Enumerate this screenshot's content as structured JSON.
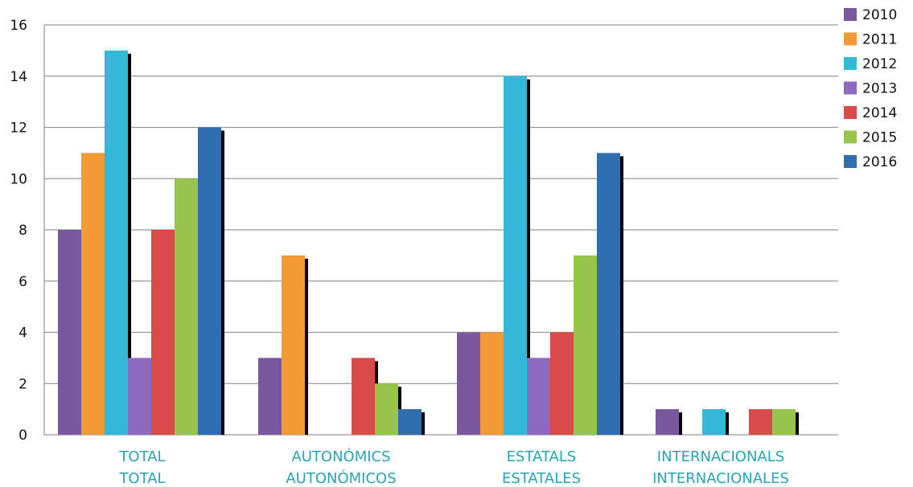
{
  "chart_data": {
    "type": "bar",
    "categories": [
      [
        "TOTAL",
        "TOTAL"
      ],
      [
        "AUTONÓMICS",
        "AUTONÓMICOS"
      ],
      [
        "ESTATALS",
        "ESTATALES"
      ],
      [
        "INTERNACIONALS",
        "INTERNACIONALES"
      ]
    ],
    "series": [
      {
        "name": "2010",
        "color": "#7a58a0",
        "values": [
          8,
          3,
          4,
          1
        ]
      },
      {
        "name": "2011",
        "color": "#f29a38",
        "values": [
          11,
          7,
          4,
          0
        ]
      },
      {
        "name": "2012",
        "color": "#34b8d8",
        "values": [
          15,
          0,
          14,
          1
        ]
      },
      {
        "name": "2013",
        "color": "#8e6bbf",
        "values": [
          3,
          0,
          3,
          0
        ]
      },
      {
        "name": "2014",
        "color": "#d94b48",
        "values": [
          8,
          3,
          4,
          1
        ]
      },
      {
        "name": "2015",
        "color": "#97c44a",
        "values": [
          10,
          2,
          7,
          1
        ]
      },
      {
        "name": "2016",
        "color": "#2f6db0",
        "values": [
          12,
          1,
          11,
          0
        ]
      }
    ],
    "y_ticks": [
      "0",
      "2",
      "4",
      "6",
      "8",
      "10",
      "12",
      "14",
      "16"
    ],
    "ylim": [
      0,
      16
    ],
    "grid": true,
    "legend": "right"
  }
}
